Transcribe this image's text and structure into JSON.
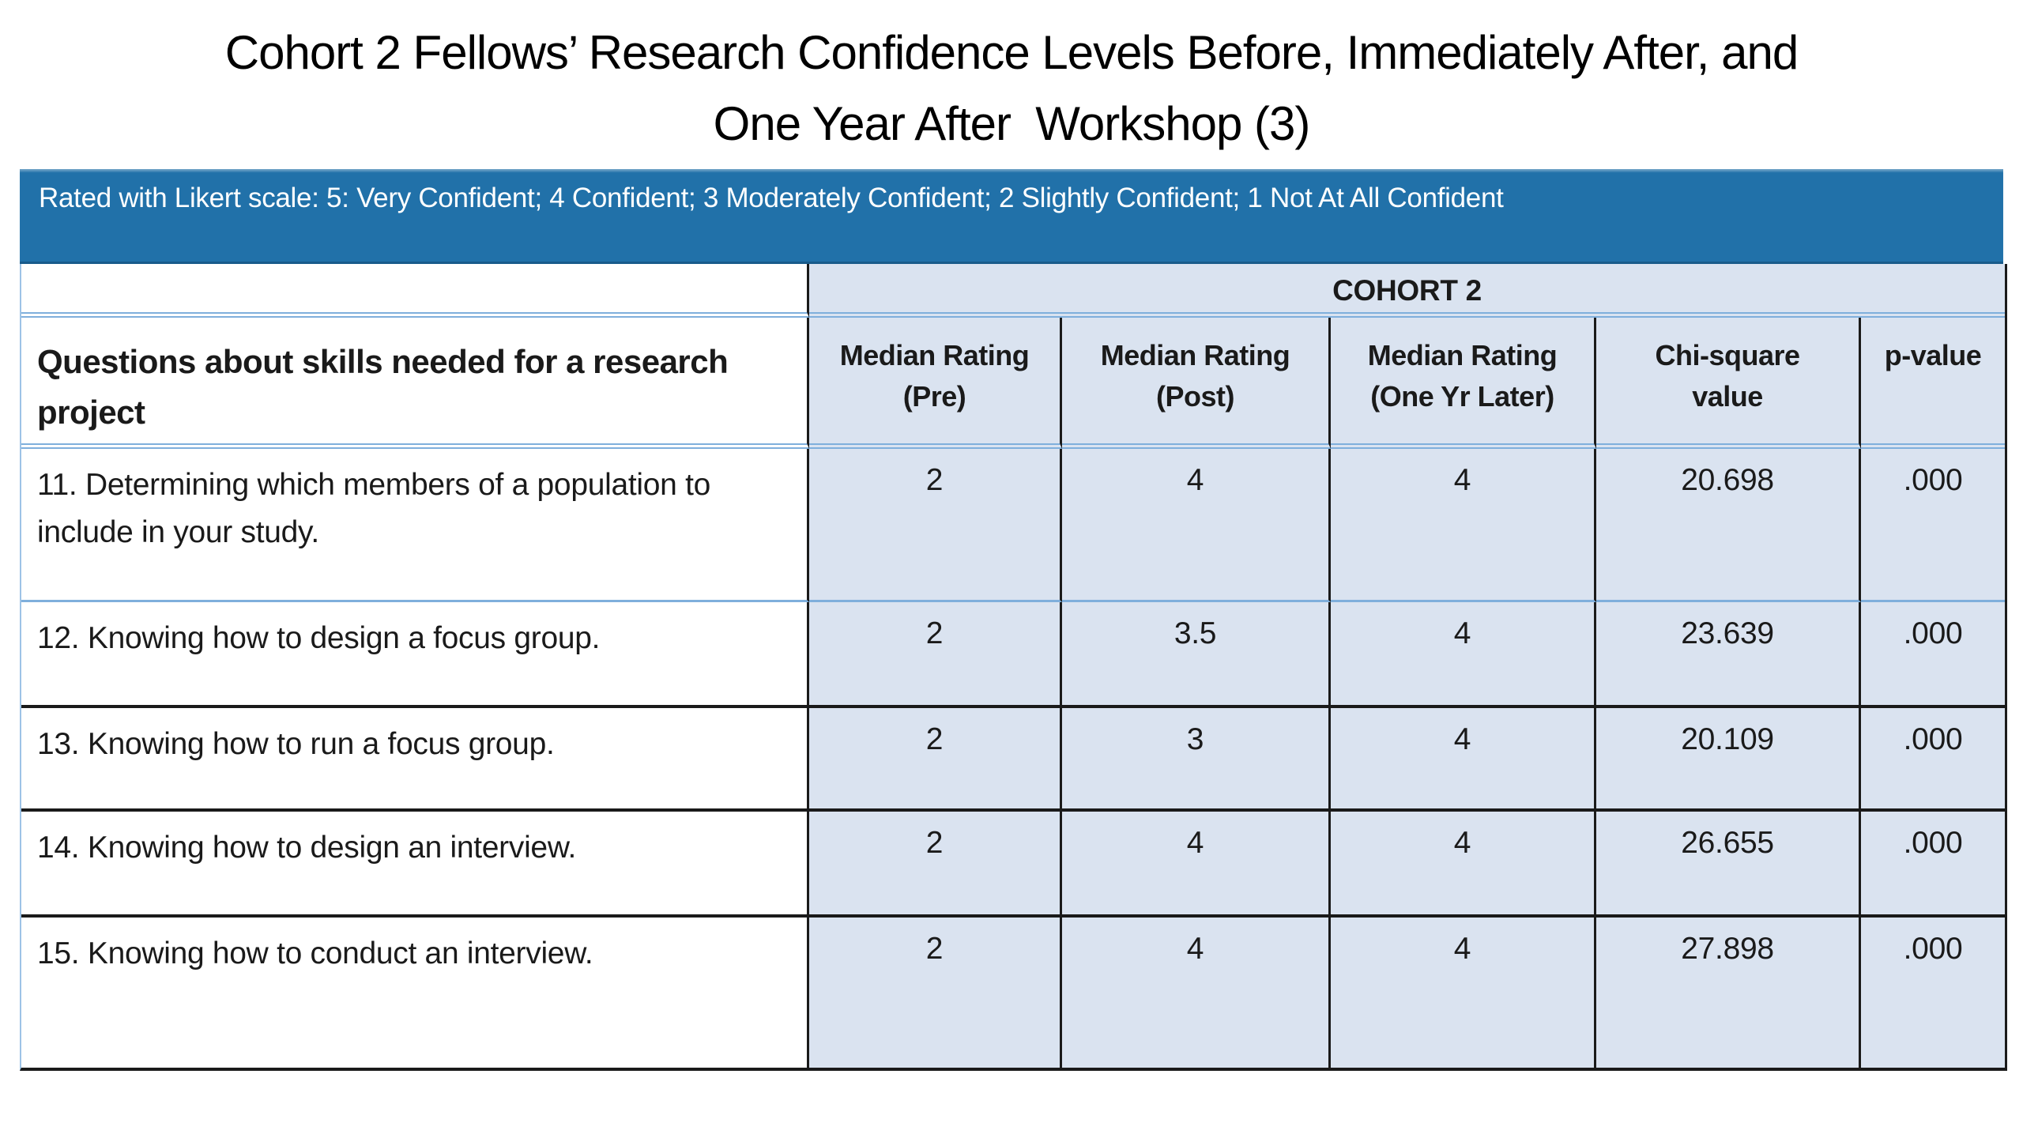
{
  "title": {
    "line1": "Cohort 2 Fellows’ Research Confidence Levels Before, Immediately After, and",
    "line2": "One Year After  Workshop (3)"
  },
  "banner": {
    "text": "Rated with Likert scale: 5: Very Confident; 4 Confident; 3 Moderately Confident; 2 Slightly Confident; 1 Not At All Confident"
  },
  "table": {
    "group_header": "COHORT 2",
    "row_header": "Questions about skills needed for a research project",
    "columns": [
      {
        "line1": "Median Rating",
        "line2": "(Pre)"
      },
      {
        "line1": "Median Rating",
        "line2": "(Post)"
      },
      {
        "line1": "Median Rating",
        "line2": "(One Yr Later)"
      },
      {
        "line1": "Chi-square",
        "line2": "value"
      },
      {
        "line1": "p-value",
        "line2": ""
      }
    ],
    "rows": [
      {
        "question": "11. Determining which members of a population to include in your study.",
        "median_pre": "2",
        "median_post": "4",
        "median_one_yr": "4",
        "chi_square": "20.698",
        "p_value": ".000"
      },
      {
        "question": "12. Knowing how to design a focus group.",
        "median_pre": "2",
        "median_post": "3.5",
        "median_one_yr": "4",
        "chi_square": "23.639",
        "p_value": ".000"
      },
      {
        "question": "13. Knowing how to run a focus group.",
        "median_pre": "2",
        "median_post": "3",
        "median_one_yr": "4",
        "chi_square": "20.109",
        "p_value": ".000"
      },
      {
        "question": "14. Knowing how to design an interview.",
        "median_pre": "2",
        "median_post": "4",
        "median_one_yr": "4",
        "chi_square": "26.655",
        "p_value": ".000"
      },
      {
        "question": "15. Knowing how to conduct an interview.",
        "median_pre": "2",
        "median_post": "4",
        "median_one_yr": "4",
        "chi_square": "27.898",
        "p_value": ".000"
      }
    ]
  },
  "colors": {
    "banner_blue": "#2171A9",
    "cell_light_blue": "#DAE3F0",
    "grid_blue": "#7FAFDC",
    "grid_dark": "#1A1A1A",
    "banner_text": "#FFFFFF"
  }
}
